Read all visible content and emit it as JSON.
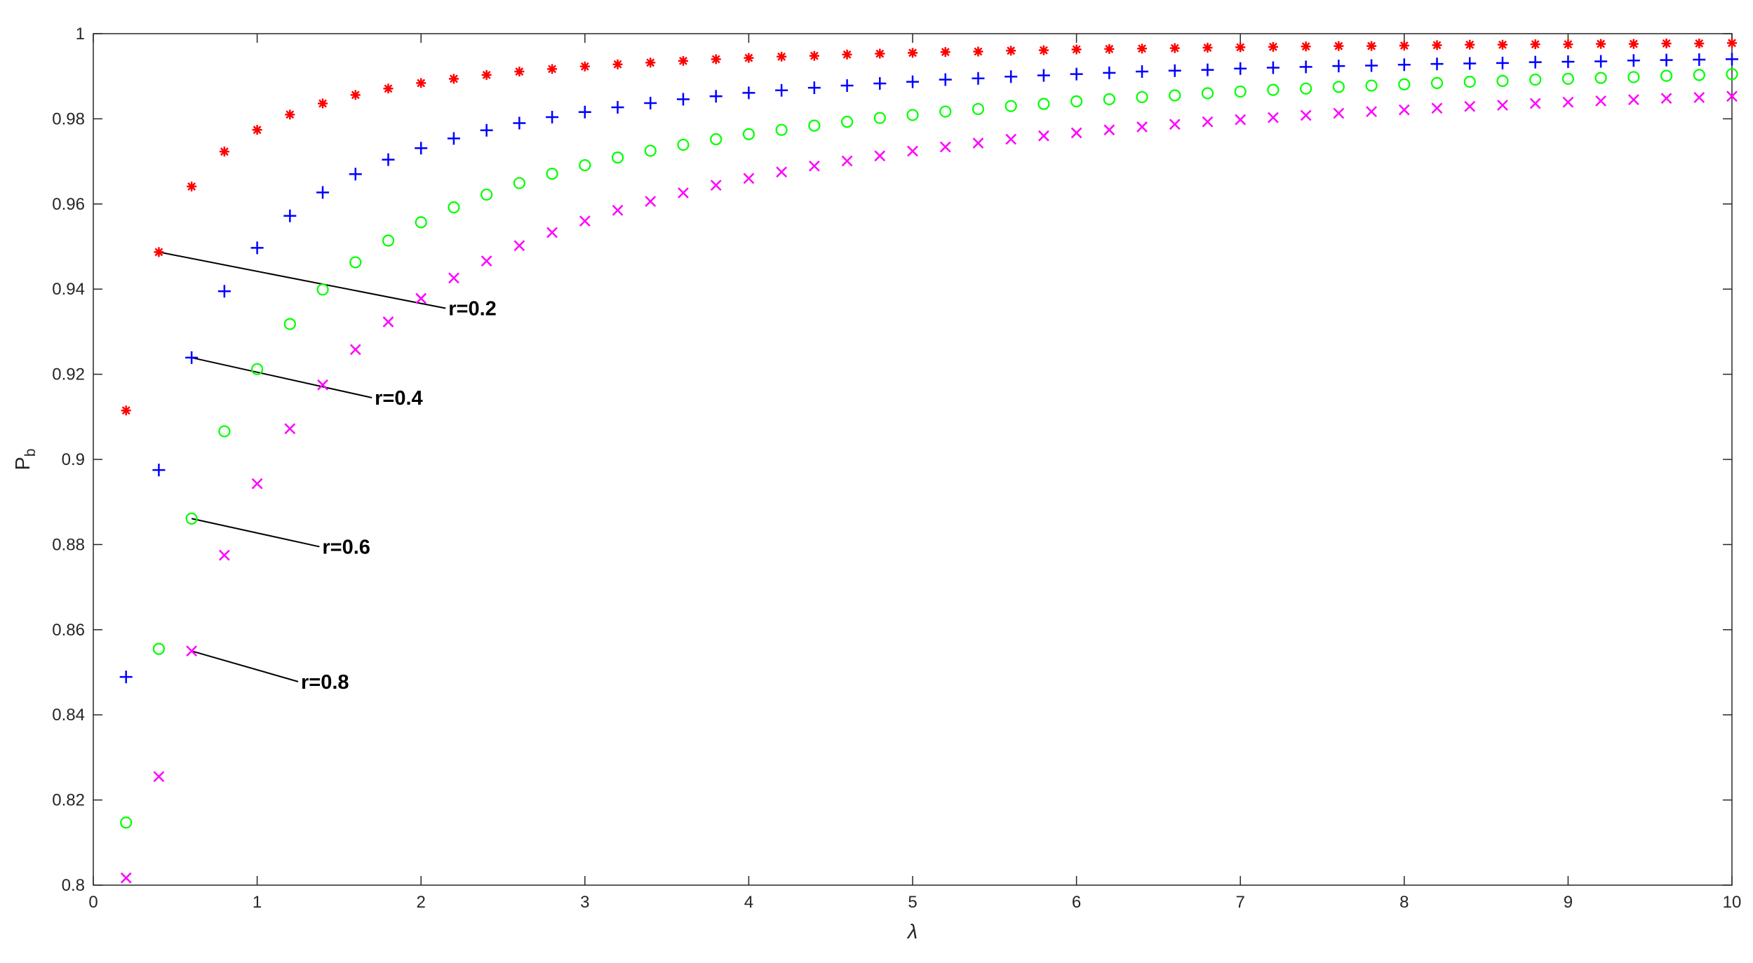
{
  "chart_data": {
    "type": "scatter",
    "title": "",
    "xlabel": "λ",
    "ylabel": "P",
    "ylabel_subscript": "b",
    "xlim": [
      0,
      10
    ],
    "ylim": [
      0.8,
      1.0
    ],
    "x_ticks": [
      0,
      1,
      2,
      3,
      4,
      5,
      6,
      7,
      8,
      9,
      10
    ],
    "x_tick_labels": [
      "0",
      "1",
      "2",
      "3",
      "4",
      "5",
      "6",
      "7",
      "8",
      "9",
      "10"
    ],
    "y_ticks": [
      0.8,
      0.82,
      0.84,
      0.86,
      0.88,
      0.9,
      0.92,
      0.94,
      0.96,
      0.98,
      1.0
    ],
    "y_tick_labels": [
      "0.8",
      "0.82",
      "0.84",
      "0.86",
      "0.88",
      "0.9",
      "0.92",
      "0.94",
      "0.96",
      "0.98",
      "1"
    ],
    "grid": false,
    "legend": "none",
    "x": [
      0.2,
      0.4,
      0.6,
      0.8,
      1.0,
      1.2,
      1.4,
      1.6,
      1.8,
      2.0,
      2.2,
      2.4,
      2.6,
      2.8,
      3.0,
      3.2,
      3.4,
      3.6,
      3.8,
      4.0,
      4.2,
      4.4,
      4.6,
      4.8,
      5.0,
      5.2,
      5.4,
      5.6,
      5.8,
      6.0,
      6.2,
      6.4,
      6.6,
      6.8,
      7.0,
      7.2,
      7.4,
      7.6,
      7.8,
      8.0,
      8.2,
      8.4,
      8.6,
      8.8,
      9.0,
      9.2,
      9.4,
      9.6,
      9.8,
      10.0
    ],
    "series": [
      {
        "name": "r=0.2",
        "marker": "asterisk",
        "color": "#ff0000",
        "values": [
          0.9115,
          0.9487,
          0.9641,
          0.9723,
          0.9774,
          0.981,
          0.9836,
          0.9856,
          0.9871,
          0.9884,
          0.9894,
          0.9903,
          0.9911,
          0.9917,
          0.9923,
          0.9928,
          0.9932,
          0.9936,
          0.994,
          0.9943,
          0.9946,
          0.9948,
          0.9951,
          0.9953,
          0.9955,
          0.9957,
          0.9958,
          0.996,
          0.9961,
          0.9963,
          0.9964,
          0.9965,
          0.9966,
          0.9967,
          0.9968,
          0.9969,
          0.997,
          0.9971,
          0.9971,
          0.9972,
          0.9973,
          0.9974,
          0.9974,
          0.9975,
          0.9975,
          0.9976,
          0.9976,
          0.9977,
          0.9977,
          0.9978
        ]
      },
      {
        "name": "r=0.4",
        "marker": "plus",
        "color": "#0000ff",
        "values": [
          0.8489,
          0.8975,
          0.9239,
          0.9395,
          0.9497,
          0.9572,
          0.9627,
          0.967,
          0.9704,
          0.9731,
          0.9754,
          0.9773,
          0.979,
          0.9804,
          0.9816,
          0.9827,
          0.9837,
          0.9846,
          0.9853,
          0.9861,
          0.9867,
          0.9873,
          0.9878,
          0.9883,
          0.9887,
          0.9892,
          0.9895,
          0.9899,
          0.9902,
          0.9905,
          0.9908,
          0.9911,
          0.9913,
          0.9915,
          0.9918,
          0.992,
          0.9922,
          0.9924,
          0.9925,
          0.9927,
          0.9929,
          0.993,
          0.9931,
          0.9933,
          0.9934,
          0.9935,
          0.9937,
          0.9938,
          0.9939,
          0.994
        ]
      },
      {
        "name": "r=0.6",
        "marker": "circle",
        "color": "#00ff00",
        "values": [
          0.8147,
          0.8555,
          0.8861,
          0.9066,
          0.9212,
          0.9318,
          0.9399,
          0.9463,
          0.9514,
          0.9557,
          0.9592,
          0.9622,
          0.9649,
          0.9671,
          0.9691,
          0.9709,
          0.9725,
          0.9739,
          0.9752,
          0.9764,
          0.9774,
          0.9784,
          0.9793,
          0.9802,
          0.9809,
          0.9817,
          0.9823,
          0.983,
          0.9835,
          0.9841,
          0.9846,
          0.9851,
          0.9855,
          0.986,
          0.9864,
          0.9868,
          0.9871,
          0.9875,
          0.9878,
          0.9881,
          0.9884,
          0.9887,
          0.9889,
          0.9892,
          0.9894,
          0.9896,
          0.9898,
          0.9901,
          0.9903,
          0.9905
        ]
      },
      {
        "name": "r=0.8",
        "marker": "x",
        "color": "#ff00ff",
        "values": [
          0.8017,
          0.8255,
          0.855,
          0.8775,
          0.8943,
          0.9072,
          0.9175,
          0.9258,
          0.9323,
          0.9378,
          0.9426,
          0.9466,
          0.9502,
          0.9533,
          0.956,
          0.9585,
          0.9606,
          0.9626,
          0.9644,
          0.966,
          0.9675,
          0.9689,
          0.9701,
          0.9713,
          0.9724,
          0.9734,
          0.9743,
          0.9752,
          0.976,
          0.9767,
          0.9774,
          0.9781,
          0.9787,
          0.9793,
          0.9798,
          0.9803,
          0.9808,
          0.9813,
          0.9817,
          0.9821,
          0.9825,
          0.9829,
          0.9832,
          0.9836,
          0.9839,
          0.9842,
          0.9845,
          0.9848,
          0.985,
          0.9853
        ]
      }
    ],
    "annotations": [
      {
        "text": "r=0.2",
        "from": [
          0.4,
          0.9487
        ],
        "to": [
          2.15,
          0.9355
        ]
      },
      {
        "text": "r=0.4",
        "from": [
          0.6,
          0.9239
        ],
        "to": [
          1.7,
          0.9145
        ]
      },
      {
        "text": "r=0.6",
        "from": [
          0.6,
          0.8861
        ],
        "to": [
          1.38,
          0.8795
        ]
      },
      {
        "text": "r=0.8",
        "from": [
          0.6,
          0.855
        ],
        "to": [
          1.25,
          0.8478
        ]
      }
    ]
  }
}
